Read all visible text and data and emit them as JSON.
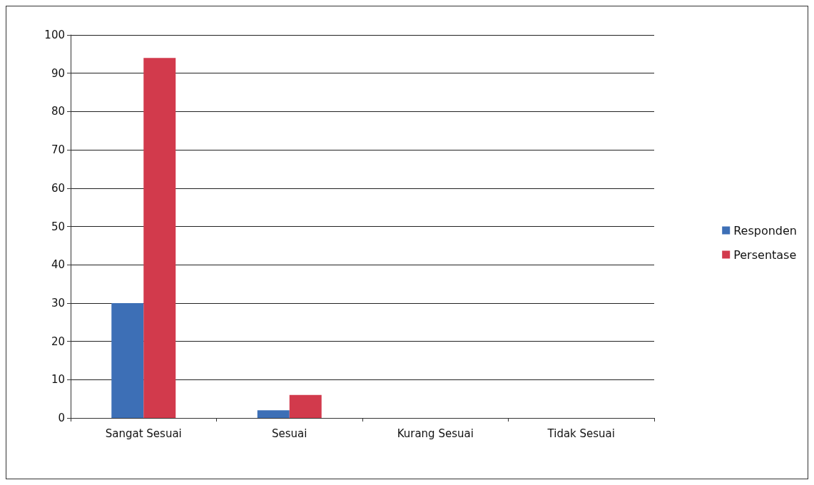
{
  "chart_data": {
    "type": "bar",
    "categories": [
      "Sangat Sesuai",
      "Sesuai",
      "Kurang Sesuai",
      "Tidak Sesuai"
    ],
    "series": [
      {
        "name": "Responden",
        "color": "#3d6fb6",
        "values": [
          30,
          2,
          0,
          0
        ]
      },
      {
        "name": "Persentase",
        "color": "#d23a4c",
        "values": [
          94,
          6,
          0,
          0
        ]
      }
    ],
    "ylim": [
      0,
      100
    ],
    "yticks": [
      0,
      10,
      20,
      30,
      40,
      50,
      60,
      70,
      80,
      90,
      100
    ],
    "grid": "y",
    "legend": "right"
  }
}
